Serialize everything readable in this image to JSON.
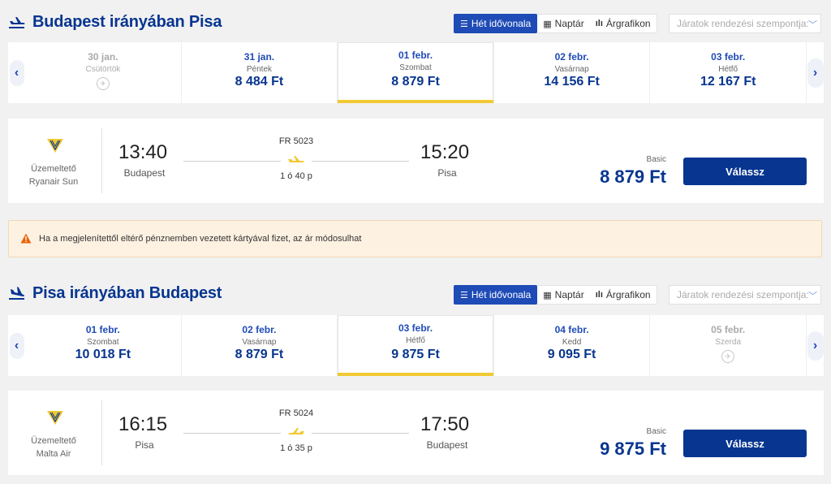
{
  "sections": [
    {
      "title": "Budapest irányában Pisa",
      "view_buttons": [
        "Hét idővonala",
        "Naptár",
        "Árgrafikon"
      ],
      "sort_placeholder": "Járatok rendezési szempontja:",
      "dates": [
        {
          "date": "30 jan.",
          "day": "Csütörtök",
          "price": "",
          "state": "disabled"
        },
        {
          "date": "31 jan.",
          "day": "Péntek",
          "price": "8 484 Ft",
          "state": "normal"
        },
        {
          "date": "01 febr.",
          "day": "Szombat",
          "price": "8 879 Ft",
          "state": "selected"
        },
        {
          "date": "02 febr.",
          "day": "Vasárnap",
          "price": "14 156 Ft",
          "state": "normal"
        },
        {
          "date": "03 febr.",
          "day": "Hétfő",
          "price": "12 167 Ft",
          "state": "normal"
        }
      ],
      "flight": {
        "operator_label": "Üzemeltető",
        "operator_name": "Ryanair Sun",
        "dep_time": "13:40",
        "dep_city": "Budapest",
        "arr_time": "15:20",
        "arr_city": "Pisa",
        "flight_no": "FR 5023",
        "duration": "1 ó 40 p",
        "fare_label": "Basic",
        "price": "8 879 Ft",
        "select_label": "Válassz"
      }
    },
    {
      "title": "Pisa irányában Budapest",
      "view_buttons": [
        "Hét idővonala",
        "Naptár",
        "Árgrafikon"
      ],
      "sort_placeholder": "Járatok rendezési szempontja:",
      "dates": [
        {
          "date": "01 febr.",
          "day": "Szombat",
          "price": "10 018 Ft",
          "state": "normal"
        },
        {
          "date": "02 febr.",
          "day": "Vasárnap",
          "price": "8 879 Ft",
          "state": "normal"
        },
        {
          "date": "03 febr.",
          "day": "Hétfő",
          "price": "9 875 Ft",
          "state": "selected"
        },
        {
          "date": "04 febr.",
          "day": "Kedd",
          "price": "9 095 Ft",
          "state": "normal"
        },
        {
          "date": "05 febr.",
          "day": "Szerda",
          "price": "",
          "state": "disabled"
        }
      ],
      "flight": {
        "operator_label": "Üzemeltető",
        "operator_name": "Malta Air",
        "dep_time": "16:15",
        "dep_city": "Pisa",
        "arr_time": "17:50",
        "arr_city": "Budapest",
        "flight_no": "FR 5024",
        "duration": "1 ó 35 p",
        "fare_label": "Basic",
        "price": "9 875 Ft",
        "select_label": "Válassz"
      }
    }
  ],
  "notice": {
    "text": "Ha a megjelenítettől eltérő pénznemben vezetett kártyával fizet, az ár módosulhat"
  },
  "colors": {
    "brand_blue": "#073590",
    "accent_blue": "#1e4bb6",
    "selected_underline": "#f1c933",
    "warning_bg": "#fdf1e1",
    "warning_icon": "#e8650c"
  }
}
